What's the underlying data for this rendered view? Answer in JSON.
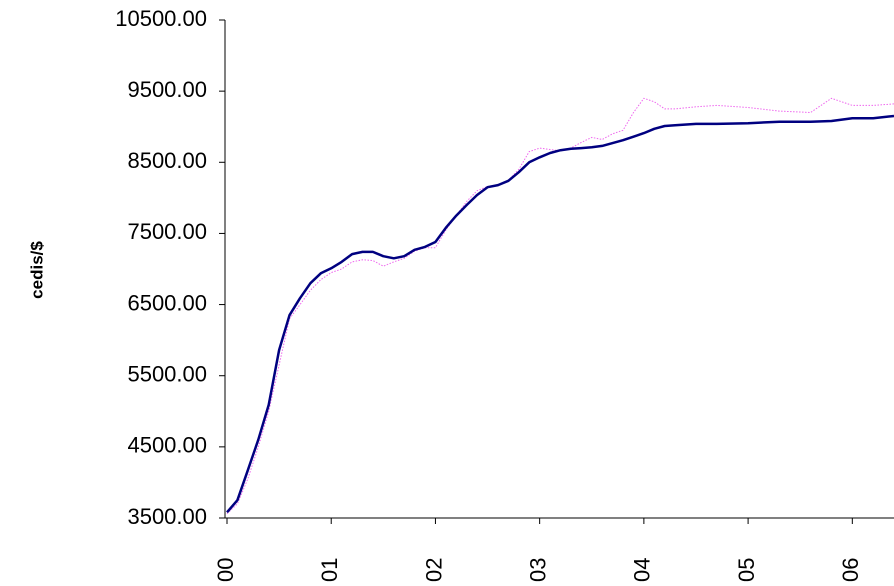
{
  "chart_data": {
    "type": "line",
    "y_label": "cedis/$",
    "x": [
      0,
      0.1,
      0.2,
      0.3,
      0.4,
      0.5,
      0.6,
      0.7,
      0.8,
      0.9,
      1.0,
      1.1,
      1.2,
      1.3,
      1.4,
      1.5,
      1.6,
      1.7,
      1.8,
      1.9,
      2.0,
      2.1,
      2.2,
      2.3,
      2.4,
      2.5,
      2.6,
      2.7,
      2.8,
      2.9,
      3.0,
      3.1,
      3.2,
      3.3,
      3.4,
      3.5,
      3.6,
      3.7,
      3.8,
      3.9,
      4.0,
      4.1,
      4.2,
      4.3,
      4.5,
      4.7,
      5.0,
      5.3,
      5.6,
      5.8,
      6.0,
      6.2,
      6.4
    ],
    "series": [
      {
        "color": "#ee66ee",
        "style": "dotted",
        "values": [
          3560,
          3700,
          4050,
          4500,
          5000,
          5650,
          6300,
          6500,
          6700,
          6850,
          6950,
          7000,
          7100,
          7130,
          7120,
          7040,
          7100,
          7150,
          7250,
          7300,
          7300,
          7550,
          7750,
          7950,
          8100,
          8160,
          8170,
          8250,
          8400,
          8650,
          8700,
          8680,
          8660,
          8700,
          8780,
          8850,
          8820,
          8900,
          8950,
          9200,
          9400,
          9350,
          9250,
          9250,
          9280,
          9300,
          9270,
          9220,
          9200,
          9400,
          9300,
          9300,
          9320
        ]
      },
      {
        "color": "#000080",
        "style": "solid",
        "values": [
          3580,
          3750,
          4170,
          4600,
          5090,
          5860,
          6350,
          6590,
          6800,
          6940,
          7010,
          7100,
          7210,
          7240,
          7240,
          7180,
          7150,
          7180,
          7270,
          7310,
          7380,
          7580,
          7750,
          7900,
          8040,
          8150,
          8180,
          8240,
          8360,
          8500,
          8570,
          8630,
          8670,
          8690,
          8700,
          8710,
          8730,
          8770,
          8810,
          8860,
          8910,
          8970,
          9010,
          9020,
          9040,
          9040,
          9050,
          9070,
          9070,
          9080,
          9120,
          9120,
          9150
        ]
      }
    ],
    "xlim": [
      0,
      6.4
    ],
    "xticks": [
      {
        "value": 0,
        "label": "00"
      },
      {
        "value": 1,
        "label": "01"
      },
      {
        "value": 2,
        "label": "02"
      },
      {
        "value": 3,
        "label": "03"
      },
      {
        "value": 4,
        "label": "04"
      },
      {
        "value": 5,
        "label": "05"
      },
      {
        "value": 6,
        "label": "06"
      }
    ],
    "ylim": [
      3500,
      10500
    ],
    "yticks": [
      {
        "value": 3500,
        "label": "3500.00"
      },
      {
        "value": 4500,
        "label": "4500.00"
      },
      {
        "value": 5500,
        "label": "5500.00"
      },
      {
        "value": 6500,
        "label": "6500.00"
      },
      {
        "value": 7500,
        "label": "7500.00"
      },
      {
        "value": 8500,
        "label": "8500.00"
      },
      {
        "value": 9500,
        "label": "9500.00"
      },
      {
        "value": 10500,
        "label": "10500.00"
      }
    ]
  }
}
